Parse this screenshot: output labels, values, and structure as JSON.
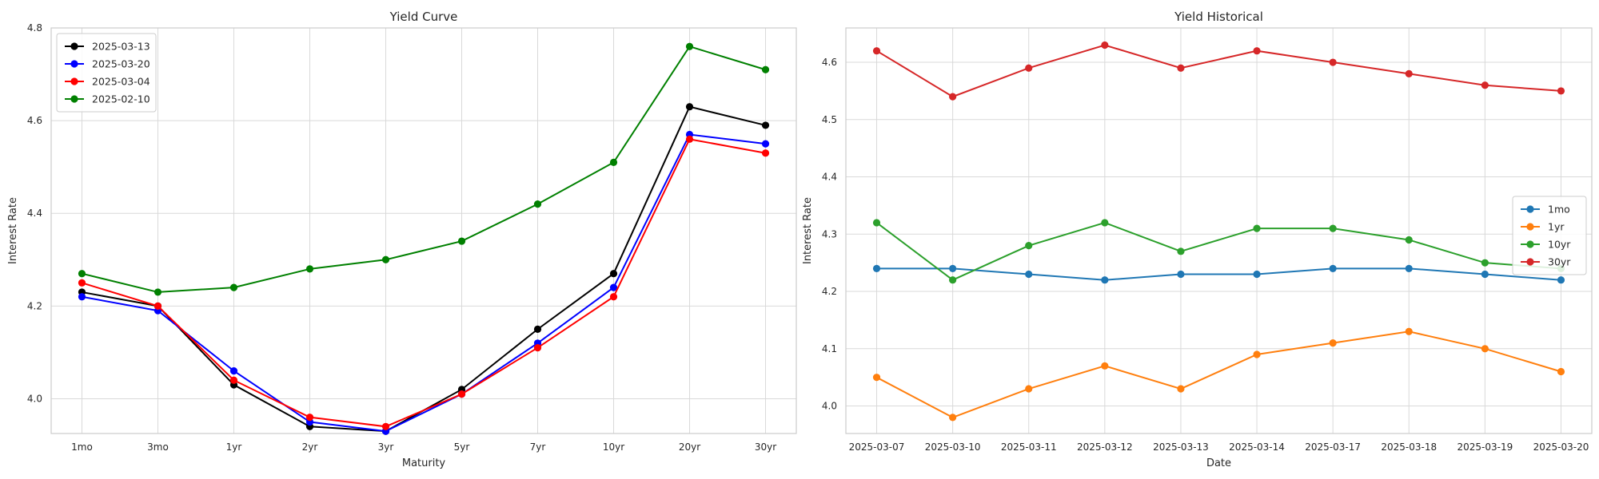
{
  "chart_data": [
    {
      "type": "line",
      "title": "Yield Curve",
      "xlabel": "Maturity",
      "ylabel": "Interest Rate",
      "categories": [
        "1mo",
        "3mo",
        "1yr",
        "2yr",
        "3yr",
        "5yr",
        "7yr",
        "10yr",
        "20yr",
        "30yr"
      ],
      "ylim": [
        3.925,
        4.8
      ],
      "yticks": [
        "4.0",
        "4.2",
        "4.4",
        "4.6",
        "4.8"
      ],
      "grid": true,
      "legend_position": "top-left",
      "series": [
        {
          "name": "2025-03-13",
          "color": "#000000",
          "values": [
            4.23,
            4.2,
            4.03,
            3.94,
            3.93,
            4.02,
            4.15,
            4.27,
            4.63,
            4.59
          ]
        },
        {
          "name": "2025-03-20",
          "color": "#0000ff",
          "values": [
            4.22,
            4.19,
            4.06,
            3.95,
            3.93,
            4.01,
            4.12,
            4.24,
            4.57,
            4.55
          ]
        },
        {
          "name": "2025-03-04",
          "color": "#ff0000",
          "values": [
            4.25,
            4.2,
            4.04,
            3.96,
            3.94,
            4.01,
            4.11,
            4.22,
            4.56,
            4.53
          ]
        },
        {
          "name": "2025-02-10",
          "color": "#008000",
          "values": [
            4.27,
            4.23,
            4.24,
            4.28,
            4.3,
            4.34,
            4.42,
            4.51,
            4.76,
            4.71
          ]
        }
      ]
    },
    {
      "type": "line",
      "title": "Yield Historical",
      "xlabel": "Date",
      "ylabel": "Interest Rate",
      "categories": [
        "2025-03-07",
        "2025-03-10",
        "2025-03-11",
        "2025-03-12",
        "2025-03-13",
        "2025-03-14",
        "2025-03-17",
        "2025-03-18",
        "2025-03-19",
        "2025-03-20"
      ],
      "ylim": [
        3.952,
        4.66
      ],
      "yticks": [
        "4.0",
        "4.1",
        "4.2",
        "4.3",
        "4.4",
        "4.5",
        "4.6"
      ],
      "grid": true,
      "legend_position": "center-right",
      "series": [
        {
          "name": "1mo",
          "color": "#1f77b4",
          "values": [
            4.24,
            4.24,
            4.23,
            4.22,
            4.23,
            4.23,
            4.24,
            4.24,
            4.23,
            4.22
          ]
        },
        {
          "name": "1yr",
          "color": "#ff7f0e",
          "values": [
            4.05,
            3.98,
            4.03,
            4.07,
            4.03,
            4.09,
            4.11,
            4.13,
            4.1,
            4.06
          ]
        },
        {
          "name": "10yr",
          "color": "#2ca02c",
          "values": [
            4.32,
            4.22,
            4.28,
            4.32,
            4.27,
            4.31,
            4.31,
            4.29,
            4.25,
            4.24
          ]
        },
        {
          "name": "30yr",
          "color": "#d62728",
          "values": [
            4.62,
            4.54,
            4.59,
            4.63,
            4.59,
            4.62,
            4.6,
            4.58,
            4.56,
            4.55
          ]
        }
      ]
    }
  ]
}
